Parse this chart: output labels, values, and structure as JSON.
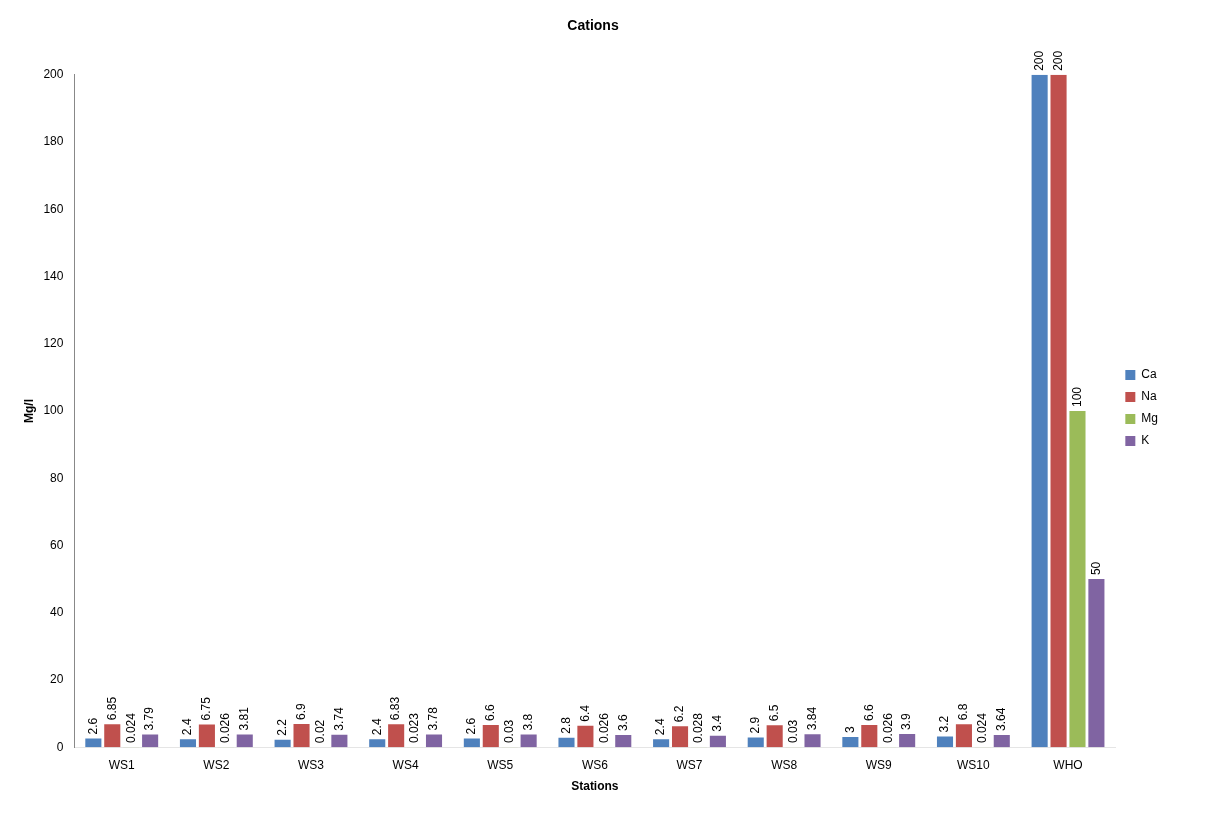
{
  "chart_data": {
    "type": "bar",
    "title": "Cations",
    "xlabel": "Stations",
    "ylabel": "Mg/l",
    "categories": [
      "WS1",
      "WS2",
      "WS3",
      "WS4",
      "WS5",
      "WS6",
      "WS7",
      "WS8",
      "WS9",
      "WS10",
      "WHO"
    ],
    "series": [
      {
        "name": "Ca",
        "color": "#4f81bd",
        "values": [
          2.6,
          2.4,
          2.2,
          2.4,
          2.6,
          2.8,
          2.4,
          2.9,
          3,
          3.2,
          200
        ]
      },
      {
        "name": "Na",
        "color": "#c0504d",
        "values": [
          6.85,
          6.75,
          6.9,
          6.83,
          6.6,
          6.4,
          6.2,
          6.5,
          6.6,
          6.8,
          200
        ]
      },
      {
        "name": "Mg",
        "color": "#9bbb59",
        "values": [
          0.024,
          0.026,
          0.02,
          0.023,
          0.03,
          0.026,
          0.028,
          0.03,
          0.026,
          0.024,
          100
        ]
      },
      {
        "name": "K",
        "color": "#8064a2",
        "values": [
          3.79,
          3.81,
          3.74,
          3.78,
          3.8,
          3.6,
          3.4,
          3.84,
          3.9,
          3.64,
          50
        ]
      }
    ],
    "ylim": [
      0,
      200
    ],
    "yticks": [
      0,
      20,
      40,
      60,
      80,
      100,
      120,
      140,
      160,
      180,
      200
    ],
    "legend": "right",
    "data_labels": true
  }
}
